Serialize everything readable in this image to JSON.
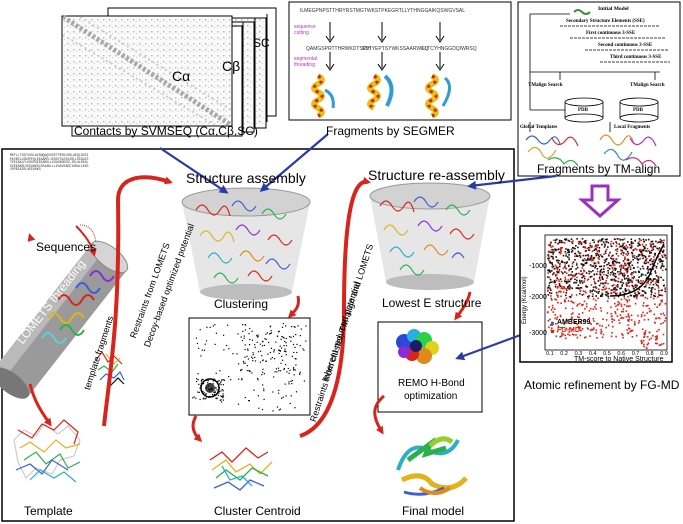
{
  "top": {
    "contacts_label": "Contacts by SVMSEQ (Cα,Cβ,SC)",
    "contact_map_labels": [
      "Cα",
      "Cβ",
      "SC"
    ],
    "fragments_segmer_label": "Fragments by SEGMER",
    "segmer": {
      "sequence_label": "sequence cutting",
      "threading_label": "segmental threading",
      "top_sequence": "ILMEGPNPSTTHRYRSTMGTWKSTPKEGRTLLYTHNGGAIKQSWGVSAL",
      "fragment_sequences": [
        "QAMGSPRTTHRWKDTSPIH",
        "SSTYEPTSYWKSSAARWKQ",
        "LLTCYHNGGDQIWRSQ"
      ]
    },
    "tm_align": {
      "initial_model": "Initial Model",
      "sse": "Secondary Structure Elements (SSE)",
      "first": "First continuous 3-SSE",
      "second": "Second continuous 3-SSE",
      "third": "Third continuous 3-SSE",
      "search_left": "TMalign Search",
      "search_right": "TMalign Search",
      "pdb_left": "PDB",
      "pdb_right": "PDB",
      "global_templates": "Global Templates",
      "local_fragments": "Local Fragments"
    },
    "fragments_tmalign_label": "Fragments by TM-align"
  },
  "main": {
    "sequence_text": "MKFLLTIGFVGSLAVSNQAQVVEETPEEKLRKLAEQLGDSIEKVKELLGKSPEQLEEAARELIEKGYSLEEAIRLLEEAGISTEEIAKLFLEKGVSEEEARKLLEDAGKSEEELIRLALEKGLSVEEAKRLVEEANKSLEEAAKLLLEAGVSAEEIARALLEKGVSPEEAIRLAEEAGKS",
    "sequences_label": "Sequences",
    "lomets_threading_label": "LOMETS threading",
    "template_fragments_label": "template fragments",
    "template_label": "Template",
    "restraints_lomets_1": "Restraints from LOMETS",
    "restraints_lomets_2": "Decoy-based optimized potential",
    "structure_assembly_label": "Structure assembly",
    "clustering_label": "Clustering",
    "cluster_centroid_label": "Cluster Centroid",
    "restraints_cluster_1": "Restraints from cluster, TM-align and LOMETS",
    "restraints_cluster_2": "Inherent reduced potential",
    "structure_reassembly_label": "Structure re-assembly",
    "lowest_e_label": "Lowest E structure",
    "remo_label_1": "REMO H-Bond",
    "remo_label_2": "optimization",
    "final_model_label": "Final model"
  },
  "plot": {
    "ylabel": "Energy (Kcal/mol)",
    "xlabel": "TM-score to Native Structure",
    "yticks": [
      "-1000",
      "-2000",
      "-3000"
    ],
    "xticks": [
      "0.1",
      "0.2",
      "0.3",
      "0.4",
      "0.5",
      "0.6",
      "0.7",
      "0.8",
      "0.9"
    ],
    "legend": [
      "AMBER99",
      "FG-MD"
    ],
    "series_colors": [
      "#111111",
      "#e02010"
    ],
    "caption": "Atomic refinement by FG-MD"
  },
  "colors": {
    "flow_arrow": "#d8241b",
    "blue_arrow": "#2a3aa8",
    "purple_arrow": "#9b2fc0"
  }
}
